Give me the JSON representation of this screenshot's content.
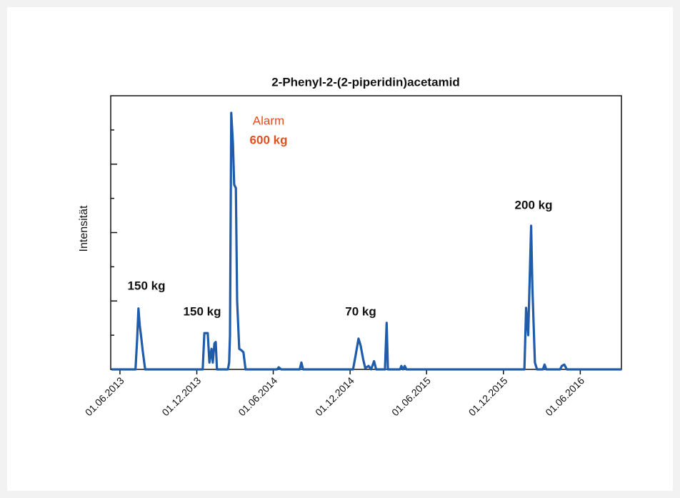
{
  "chart_data": {
    "type": "line",
    "title": "2-Phenyl-2-(2-piperidin)acetamid",
    "y_label": "Intensität",
    "xlim": [
      "2013-05-10",
      "2016-09-07"
    ],
    "xticks": [
      {
        "value": "2013-06-01",
        "label": "01.06.2013"
      },
      {
        "value": "2013-12-01",
        "label": "01.12.2013"
      },
      {
        "value": "2014-06-01",
        "label": "01.06.2014"
      },
      {
        "value": "2014-12-01",
        "label": "01.12.2014"
      },
      {
        "value": "2015-06-01",
        "label": "01.06.2015"
      },
      {
        "value": "2015-12-01",
        "label": "01.12.2015"
      },
      {
        "value": "2016-06-01",
        "label": "01.06.2016"
      }
    ],
    "ylim": [
      0,
      4
    ],
    "yticks": [
      0,
      0.5,
      1,
      1.5,
      2,
      2.5,
      3,
      3.5
    ],
    "grid": false,
    "x": [
      "2013-05-12",
      "2013-07-08",
      "2013-07-12",
      "2013-07-15",
      "2013-07-18",
      "2013-07-22",
      "2013-07-25",
      "2013-07-31",
      "2013-12-15",
      "2013-12-19",
      "2013-12-22",
      "2013-12-27",
      "2013-12-31",
      "2014-01-05",
      "2014-01-08",
      "2014-01-12",
      "2014-01-15",
      "2014-01-18",
      "2014-02-13",
      "2014-02-16",
      "2014-02-18",
      "2014-02-21",
      "2014-02-25",
      "2014-02-28",
      "2014-03-04",
      "2014-03-07",
      "2014-03-12",
      "2014-03-17",
      "2014-03-22",
      "2014-03-27",
      "2014-06-10",
      "2014-06-14",
      "2014-06-20",
      "2014-08-03",
      "2014-08-07",
      "2014-08-11",
      "2014-12-08",
      "2014-12-14",
      "2014-12-21",
      "2014-12-26",
      "2015-01-01",
      "2015-01-06",
      "2015-01-14",
      "2015-01-20",
      "2015-01-27",
      "2015-02-01",
      "2015-02-22",
      "2015-02-26",
      "2015-03-01",
      "2015-03-30",
      "2015-04-02",
      "2015-04-06",
      "2015-04-10",
      "2015-04-14",
      "2016-01-20",
      "2016-01-24",
      "2016-01-29",
      "2016-02-05",
      "2016-02-08",
      "2016-02-14",
      "2016-02-19",
      "2016-03-04",
      "2016-03-08",
      "2016-03-12",
      "2016-04-14",
      "2016-04-18",
      "2016-04-24",
      "2016-04-30",
      "2016-09-07"
    ],
    "series": [
      {
        "name": "2-Phenyl-2-(2-piperidin)acetamid",
        "color": "#1f5dab",
        "values": [
          0,
          0,
          0.45,
          0.89,
          0.65,
          0.45,
          0.28,
          0,
          0,
          0.53,
          0.53,
          0.53,
          0.1,
          0.3,
          0.1,
          0.38,
          0.4,
          0,
          0,
          0.1,
          0.5,
          3.75,
          3.3,
          2.7,
          2.65,
          1.0,
          0.3,
          0.28,
          0.25,
          0,
          0,
          0.03,
          0,
          0,
          0.1,
          0,
          0,
          0.2,
          0.45,
          0.35,
          0.15,
          0.02,
          0.05,
          0,
          0.12,
          0,
          0,
          0.68,
          0,
          0,
          0.05,
          0,
          0.05,
          0,
          0,
          0.9,
          0.5,
          2.1,
          1.2,
          0.1,
          0,
          0,
          0.07,
          0,
          0,
          0.05,
          0.07,
          0,
          0
        ]
      }
    ],
    "annotations": [
      {
        "text": "150 kg",
        "color": "#111111",
        "bold": true
      },
      {
        "text": "150 kg",
        "color": "#111111",
        "bold": true
      },
      {
        "text": "Alarm",
        "color": "#e0501e",
        "bold": false
      },
      {
        "text": "600 kg",
        "color": "#e0501e",
        "bold": true
      },
      {
        "text": "70 kg",
        "color": "#111111",
        "bold": true
      },
      {
        "text": "200 kg",
        "color": "#111111",
        "bold": true
      }
    ]
  }
}
